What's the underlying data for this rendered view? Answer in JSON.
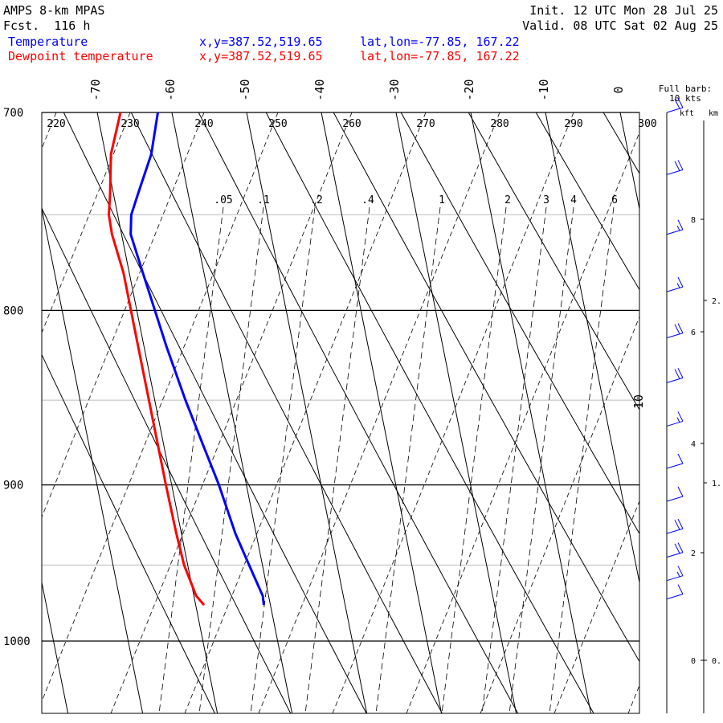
{
  "header": {
    "model": "AMPS 8-km MPAS",
    "forecast": "Fcst.  116 h",
    "init": "Init. 12 UTC Mon 28 Jul 25",
    "valid": "Valid. 08 UTC Sat 02 Aug 25",
    "legend": [
      {
        "label": "Temperature",
        "xy": "x,y=387.52,519.65",
        "latlon": "lat,lon=-77.85, 167.22",
        "color": "#0000ff"
      },
      {
        "label": "Dewpoint temperature",
        "xy": "x,y=387.52,519.65",
        "latlon": "lat,lon=-77.85, 167.22",
        "color": "#ff0000"
      }
    ]
  },
  "barb_legend": {
    "line1": "Full barb:",
    "line2": "10 kts"
  },
  "height_axis": {
    "kft_label": "kft",
    "km_label": "km",
    "kft_ticks": [
      "0",
      "2",
      "4",
      "6",
      "8"
    ],
    "km_ticks": [
      "0.",
      "1.",
      "2."
    ]
  },
  "chart_data": {
    "type": "line",
    "chart_kind": "skew-T log-p diagram",
    "y_axis": {
      "scale": "log",
      "range": [
        1045,
        700
      ],
      "labels": [
        "700",
        "800",
        "900",
        "1000"
      ]
    },
    "isotherm_labels": [
      "-70",
      "-60",
      "-50",
      "-40",
      "-30",
      "-20",
      "-10",
      "0",
      "10"
    ],
    "dry_adiabat_labels": [
      "220",
      "230",
      "240",
      "250",
      "260",
      "270",
      "280",
      "290",
      "300"
    ],
    "mixing_ratio_labels": [
      ".05",
      ".1",
      ".2",
      ".4",
      "1",
      "2",
      "3",
      "4",
      "6"
    ],
    "series": [
      {
        "name": "Temperature",
        "color": "#0000ff",
        "points": [
          [
            976,
            -34.0
          ],
          [
            970,
            -33.9
          ],
          [
            950,
            -34.9
          ],
          [
            930,
            -35.9
          ],
          [
            900,
            -36.8
          ],
          [
            875,
            -37.9
          ],
          [
            850,
            -39.0
          ],
          [
            820,
            -40.1
          ],
          [
            800,
            -40.7
          ],
          [
            780,
            -41.3
          ],
          [
            760,
            -41.9
          ],
          [
            750,
            -41.3
          ],
          [
            740,
            -39.9
          ],
          [
            720,
            -37.0
          ],
          [
            700,
            -35.0
          ]
        ]
      },
      {
        "name": "Dewpoint temperature",
        "color": "#ff0000",
        "points": [
          [
            976,
            -42.0
          ],
          [
            970,
            -42.8
          ],
          [
            950,
            -43.6
          ],
          [
            930,
            -43.8
          ],
          [
            900,
            -43.9
          ],
          [
            875,
            -43.9
          ],
          [
            850,
            -43.9
          ],
          [
            820,
            -43.9
          ],
          [
            800,
            -43.9
          ],
          [
            780,
            -43.9
          ],
          [
            760,
            -44.4
          ],
          [
            750,
            -44.3
          ],
          [
            740,
            -43.6
          ],
          [
            720,
            -42.4
          ],
          [
            700,
            -40.0
          ]
        ]
      }
    ],
    "wind_barbs": [
      {
        "p": 700,
        "kts": 20
      },
      {
        "p": 730,
        "kts": 20
      },
      {
        "p": 760,
        "kts": 15
      },
      {
        "p": 790,
        "kts": 15
      },
      {
        "p": 815,
        "kts": 20
      },
      {
        "p": 840,
        "kts": 20
      },
      {
        "p": 865,
        "kts": 15
      },
      {
        "p": 890,
        "kts": 10
      },
      {
        "p": 910,
        "kts": 10
      },
      {
        "p": 930,
        "kts": 20
      },
      {
        "p": 945,
        "kts": 20
      },
      {
        "p": 960,
        "kts": 15
      },
      {
        "p": 972,
        "kts": 10
      }
    ],
    "grid": true,
    "legend_position": "top-left"
  }
}
